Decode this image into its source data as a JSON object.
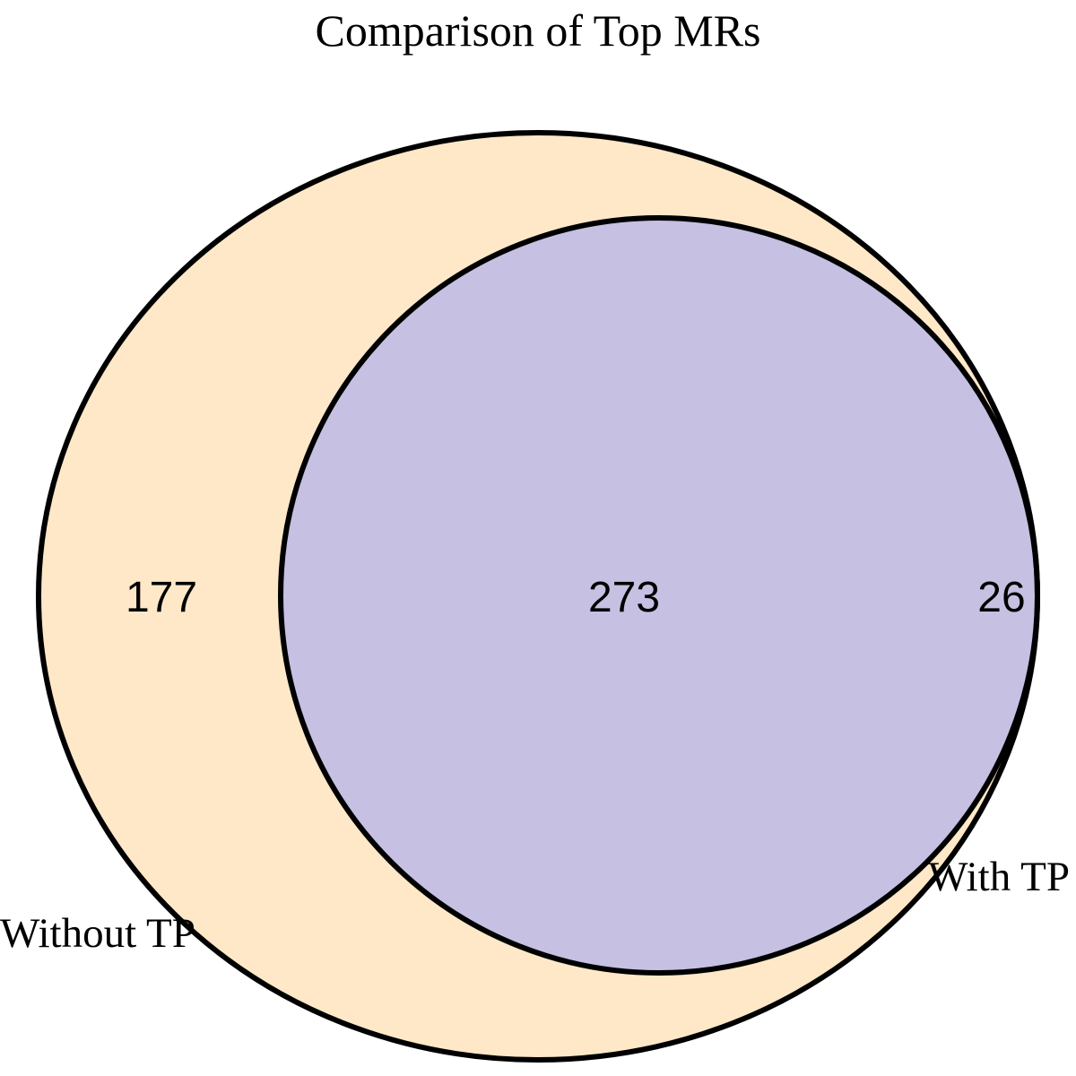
{
  "title": "Comparison of Top MRs",
  "sets": [
    {
      "label": "Without TP",
      "color": "#FEE8C8"
    },
    {
      "label": "With TP",
      "color": "#C8C8FE"
    }
  ],
  "overlap_color": "#C6C0E2",
  "outline_color": "#000000",
  "regions": {
    "without_only": "177",
    "both": "273",
    "with_only": "26"
  }
}
